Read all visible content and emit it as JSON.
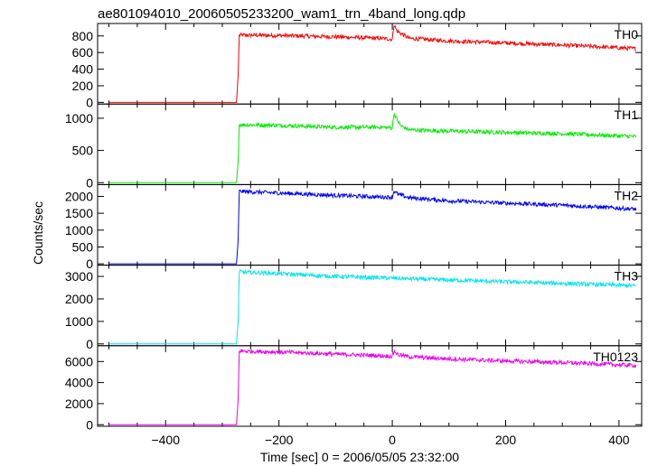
{
  "chart_data": {
    "type": "line",
    "title": "ae801094010_20060505233200_wam1_trn_4band_long.qdp",
    "xlabel": "Time [sec] 0 = 2006/05/05 23:32:00",
    "ylabel": "Counts/sec",
    "xlim": [
      -520,
      440
    ],
    "xticks": [
      -400,
      -200,
      0,
      200,
      400
    ],
    "xtick_labels": [
      "−400",
      "−200",
      "0",
      "200",
      "400"
    ],
    "grid": false,
    "panels": [
      {
        "name": "TH0",
        "color": "#ff0000",
        "ylim": [
          -20,
          950
        ],
        "yticks": [
          0,
          200,
          400,
          600,
          800
        ],
        "points": [
          [
            -500,
            0
          ],
          [
            -275,
            0
          ],
          [
            -272,
            330
          ],
          [
            -270,
            810
          ],
          [
            -200,
            805
          ],
          [
            -100,
            790
          ],
          [
            -20,
            770
          ],
          [
            0,
            760
          ],
          [
            3,
            940
          ],
          [
            8,
            860
          ],
          [
            15,
            830
          ],
          [
            30,
            770
          ],
          [
            100,
            740
          ],
          [
            200,
            715
          ],
          [
            300,
            690
          ],
          [
            420,
            650
          ],
          [
            430,
            645
          ]
        ]
      },
      {
        "name": "TH1",
        "color": "#00ee00",
        "ylim": [
          -30,
          1220
        ],
        "yticks": [
          0,
          500,
          1000
        ],
        "points": [
          [
            -500,
            0
          ],
          [
            -275,
            0
          ],
          [
            -272,
            330
          ],
          [
            -270,
            900
          ],
          [
            -200,
            890
          ],
          [
            -100,
            860
          ],
          [
            -20,
            860
          ],
          [
            0,
            850
          ],
          [
            3,
            1080
          ],
          [
            8,
            980
          ],
          [
            15,
            880
          ],
          [
            30,
            820
          ],
          [
            100,
            800
          ],
          [
            200,
            780
          ],
          [
            300,
            760
          ],
          [
            420,
            720
          ],
          [
            430,
            715
          ]
        ]
      },
      {
        "name": "TH2",
        "color": "#0000ff",
        "ylim": [
          -40,
          2350
        ],
        "yticks": [
          0,
          500,
          1000,
          1500,
          2000
        ],
        "points": [
          [
            -500,
            0
          ],
          [
            -275,
            0
          ],
          [
            -272,
            700
          ],
          [
            -270,
            2150
          ],
          [
            -200,
            2100
          ],
          [
            -100,
            2030
          ],
          [
            -20,
            1980
          ],
          [
            0,
            1980
          ],
          [
            3,
            2160
          ],
          [
            10,
            2060
          ],
          [
            30,
            1960
          ],
          [
            100,
            1870
          ],
          [
            200,
            1800
          ],
          [
            300,
            1740
          ],
          [
            420,
            1630
          ],
          [
            430,
            1620
          ]
        ]
      },
      {
        "name": "TH3",
        "color": "#00e5ee",
        "ylim": [
          -80,
          3500
        ],
        "yticks": [
          0,
          1000,
          2000,
          3000
        ],
        "points": [
          [
            -500,
            0
          ],
          [
            -275,
            0
          ],
          [
            -272,
            1000
          ],
          [
            -270,
            3200
          ],
          [
            -200,
            3120
          ],
          [
            -100,
            3000
          ],
          [
            0,
            2920
          ],
          [
            100,
            2840
          ],
          [
            200,
            2760
          ],
          [
            300,
            2690
          ],
          [
            420,
            2590
          ],
          [
            430,
            2580
          ]
        ]
      },
      {
        "name": "TH0123",
        "color": "#ee00ee",
        "ylim": [
          -150,
          7500
        ],
        "yticks": [
          0,
          2000,
          4000,
          6000
        ],
        "points": [
          [
            -500,
            0
          ],
          [
            -275,
            0
          ],
          [
            -272,
            2400
          ],
          [
            -270,
            7000
          ],
          [
            -200,
            6900
          ],
          [
            -100,
            6700
          ],
          [
            -20,
            6550
          ],
          [
            0,
            6500
          ],
          [
            3,
            7000
          ],
          [
            10,
            6650
          ],
          [
            30,
            6450
          ],
          [
            100,
            6250
          ],
          [
            200,
            6050
          ],
          [
            300,
            5900
          ],
          [
            420,
            5650
          ],
          [
            430,
            5620
          ]
        ]
      }
    ]
  }
}
